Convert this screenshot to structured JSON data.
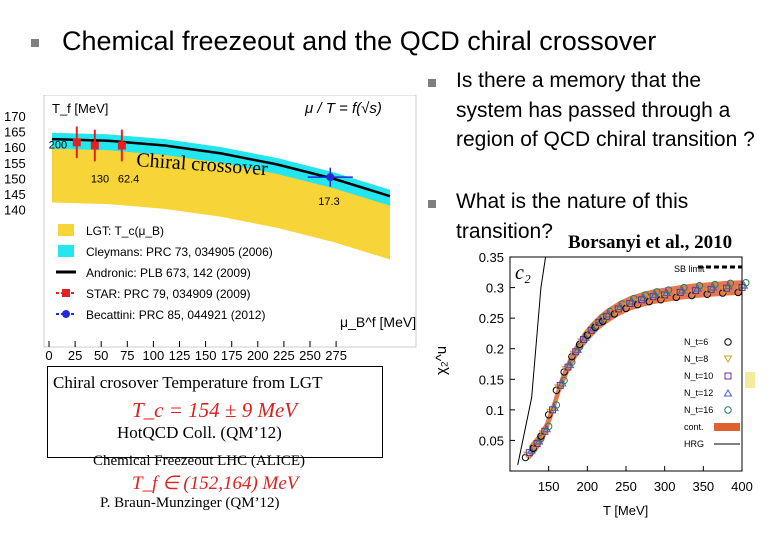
{
  "slide": {
    "title": "Chemical freezeout and the QCD chiral crossover",
    "bullets": [
      "Is there a memory that the system has passed through a region of QCD chiral transition ?",
      "What is the nature of this transition?"
    ],
    "credit": "Borsanyi et al., 2010"
  },
  "left_chart": {
    "chart_data": {
      "type": "line",
      "ylabel": "T_f [MeV]",
      "xlabel": "μ_B^f [MeV]",
      "formula": "μ / T = f(√s)",
      "x_ticks": [
        0,
        25,
        50,
        75,
        100,
        125,
        150,
        175,
        200,
        225,
        250,
        275
      ],
      "y_ticks": [
        170,
        165,
        160,
        155,
        150,
        145,
        140
      ],
      "xlim": [
        0,
        300
      ],
      "ylim": [
        140,
        170
      ],
      "annotation": "Chiral crossover",
      "lgt_band": {
        "mu": [
          0,
          50,
          100,
          150,
          200,
          250,
          300
        ],
        "t_low": [
          143,
          142.5,
          141,
          138.5,
          135,
          130.5,
          125
        ],
        "t_high": [
          165,
          164.5,
          163,
          160.5,
          157,
          152.5,
          147
        ]
      },
      "cleymans_band": {
        "mu": [
          0,
          50,
          100,
          150,
          200,
          250,
          300
        ],
        "t_low": [
          160,
          159.5,
          158,
          155.5,
          152,
          147.5,
          142
        ],
        "t_high": [
          165,
          164.5,
          163,
          160.5,
          157,
          152.5,
          147
        ]
      },
      "andronic_line": {
        "mu": [
          0,
          50,
          100,
          150,
          200,
          250,
          300
        ],
        "t": [
          163,
          162.5,
          161,
          158.5,
          155,
          150.5,
          145
        ]
      },
      "star_points": [
        {
          "mu": 22,
          "t": 162,
          "err": 5,
          "label": "200"
        },
        {
          "mu": 38,
          "t": 161,
          "err": 5,
          "label": "130"
        },
        {
          "mu": 62,
          "t": 161,
          "err": 5,
          "label": "62.4"
        }
      ],
      "becattini_point": {
        "mu": 247,
        "t": 151,
        "xerr": 20,
        "err": 3,
        "label": "17.3"
      },
      "legend": [
        {
          "label": "LGT: T_c(μ_B)",
          "color": "#f7d437",
          "kind": "box"
        },
        {
          "label": "Cleymans: PRC 73, 034905 (2006)",
          "color": "#22e6f0",
          "kind": "box"
        },
        {
          "label": "Andronic: PLB 673, 142 (2009)",
          "color": "#000000",
          "kind": "line"
        },
        {
          "label": "STAR: PRC 79, 034909 (2009)",
          "color": "#e22222",
          "kind": "marker"
        },
        {
          "label": "Becattini: PRC 85, 044921 (2012)",
          "color": "#1f2bd6",
          "kind": "marker"
        }
      ]
    }
  },
  "captions": {
    "lgt_text": "Chiral crosover  Temperature from LGT",
    "tc_formula": "T_c = 154 ± 9 MeV",
    "hotqcd": "HotQCD Coll.  (QM’12)",
    "freezeout": "Chemical Freezeout LHC (ALICE)",
    "tf_formula": "T_f ∈ (152,164) MeV",
    "braun": "P.  Braun-Munzinger  (QM’12)"
  },
  "right_chart": {
    "chart_data": {
      "type": "scatter",
      "ylabel": "χ₂^u",
      "panel_label": "c₂",
      "xlabel": "T [MeV]",
      "xlim": [
        100,
        400
      ],
      "ylim": [
        0,
        0.35
      ],
      "x_ticks": [
        150,
        200,
        250,
        300,
        350,
        400
      ],
      "y_ticks": [
        0.35,
        0.3,
        0.25,
        0.2,
        0.15,
        0.1,
        0.05
      ],
      "sb_limit": 0.31,
      "sb_label": "SB limit",
      "legend": [
        {
          "label": "N_t=6",
          "marker": "circle",
          "color": "#000000"
        },
        {
          "label": "N_t=8",
          "marker": "triangle-down",
          "color": "#d8a020"
        },
        {
          "label": "N_t=10",
          "marker": "square",
          "color": "#6030a0"
        },
        {
          "label": "N_t=12",
          "marker": "triangle-up",
          "color": "#4060c0"
        },
        {
          "label": "N_t=16",
          "marker": "circle-dot",
          "color": "#208060"
        },
        {
          "label": "cont.",
          "marker": "band",
          "color": "#e06030"
        },
        {
          "label": "HRG",
          "marker": "line",
          "color": "#000000"
        }
      ],
      "series_x": [
        125,
        135,
        145,
        155,
        165,
        175,
        185,
        195,
        205,
        215,
        225,
        240,
        255,
        270,
        285,
        300,
        320,
        340,
        360,
        380,
        400
      ],
      "series_y": [
        0.03,
        0.045,
        0.065,
        0.1,
        0.14,
        0.17,
        0.195,
        0.215,
        0.23,
        0.243,
        0.253,
        0.265,
        0.274,
        0.28,
        0.285,
        0.288,
        0.292,
        0.295,
        0.297,
        0.299,
        0.3
      ]
    }
  }
}
